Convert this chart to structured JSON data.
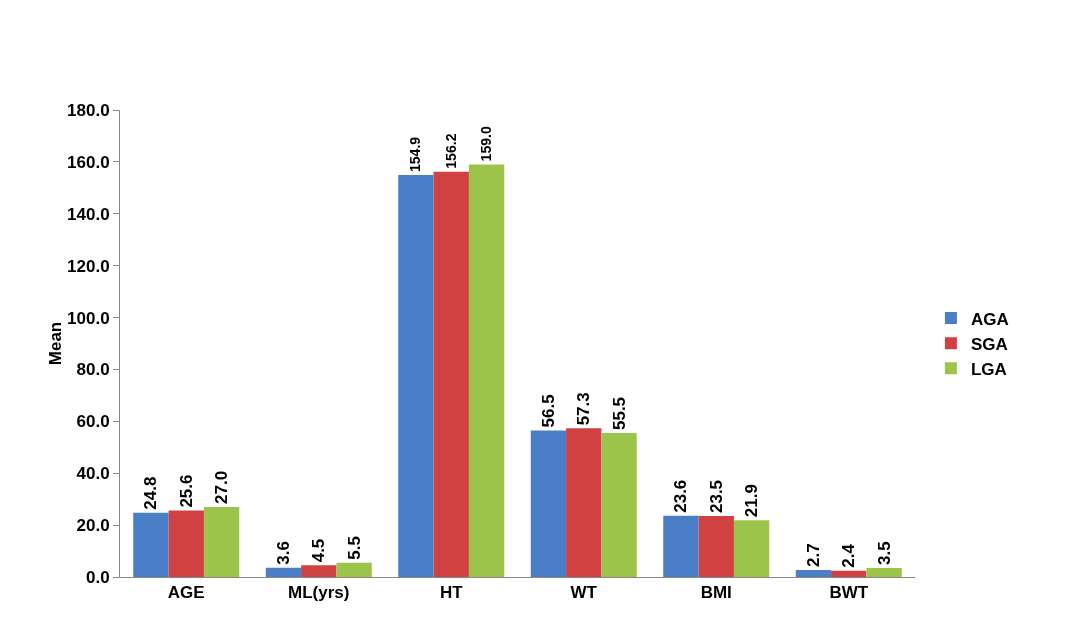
{
  "chart_data": {
    "type": "bar",
    "ylabel": "Mean",
    "categories": [
      "AGE",
      "ML(yrs)",
      "HT",
      "WT",
      "BMI",
      "BWT"
    ],
    "series": [
      {
        "name": "AGA",
        "color": "#4a7fc8",
        "values": [
          24.8,
          3.6,
          154.9,
          56.5,
          23.6,
          2.7
        ],
        "value_labels": [
          "24.8",
          "3.6",
          "154.9",
          "56.5",
          "23.6",
          "2.7"
        ]
      },
      {
        "name": "SGA",
        "color": "#d04241",
        "values": [
          25.6,
          4.5,
          156.2,
          57.3,
          23.5,
          2.4
        ],
        "value_labels": [
          "25.6",
          "4.5",
          "156.2",
          "57.3",
          "23.5",
          "2.4"
        ]
      },
      {
        "name": "LGA",
        "color": "#9cc44a",
        "values": [
          27.0,
          5.5,
          159.0,
          55.5,
          21.9,
          3.5
        ],
        "value_labels": [
          "27.0",
          "5.5",
          "159.0",
          "55.5",
          "21.9",
          "3.5"
        ]
      }
    ],
    "ylim": [
      0,
      180
    ],
    "yticks": [
      {
        "value": 0,
        "label": "0.0"
      },
      {
        "value": 20,
        "label": "20.0"
      },
      {
        "value": 40,
        "label": "40.0"
      },
      {
        "value": 60,
        "label": "60.0"
      },
      {
        "value": 80,
        "label": "80.0"
      },
      {
        "value": 100,
        "label": "100.0"
      },
      {
        "value": 120,
        "label": "120.0"
      },
      {
        "value": 140,
        "label": "140.0"
      },
      {
        "value": 160,
        "label": "160.0"
      },
      {
        "value": 180,
        "label": "180.0"
      }
    ],
    "grid": false,
    "legend": "right"
  }
}
